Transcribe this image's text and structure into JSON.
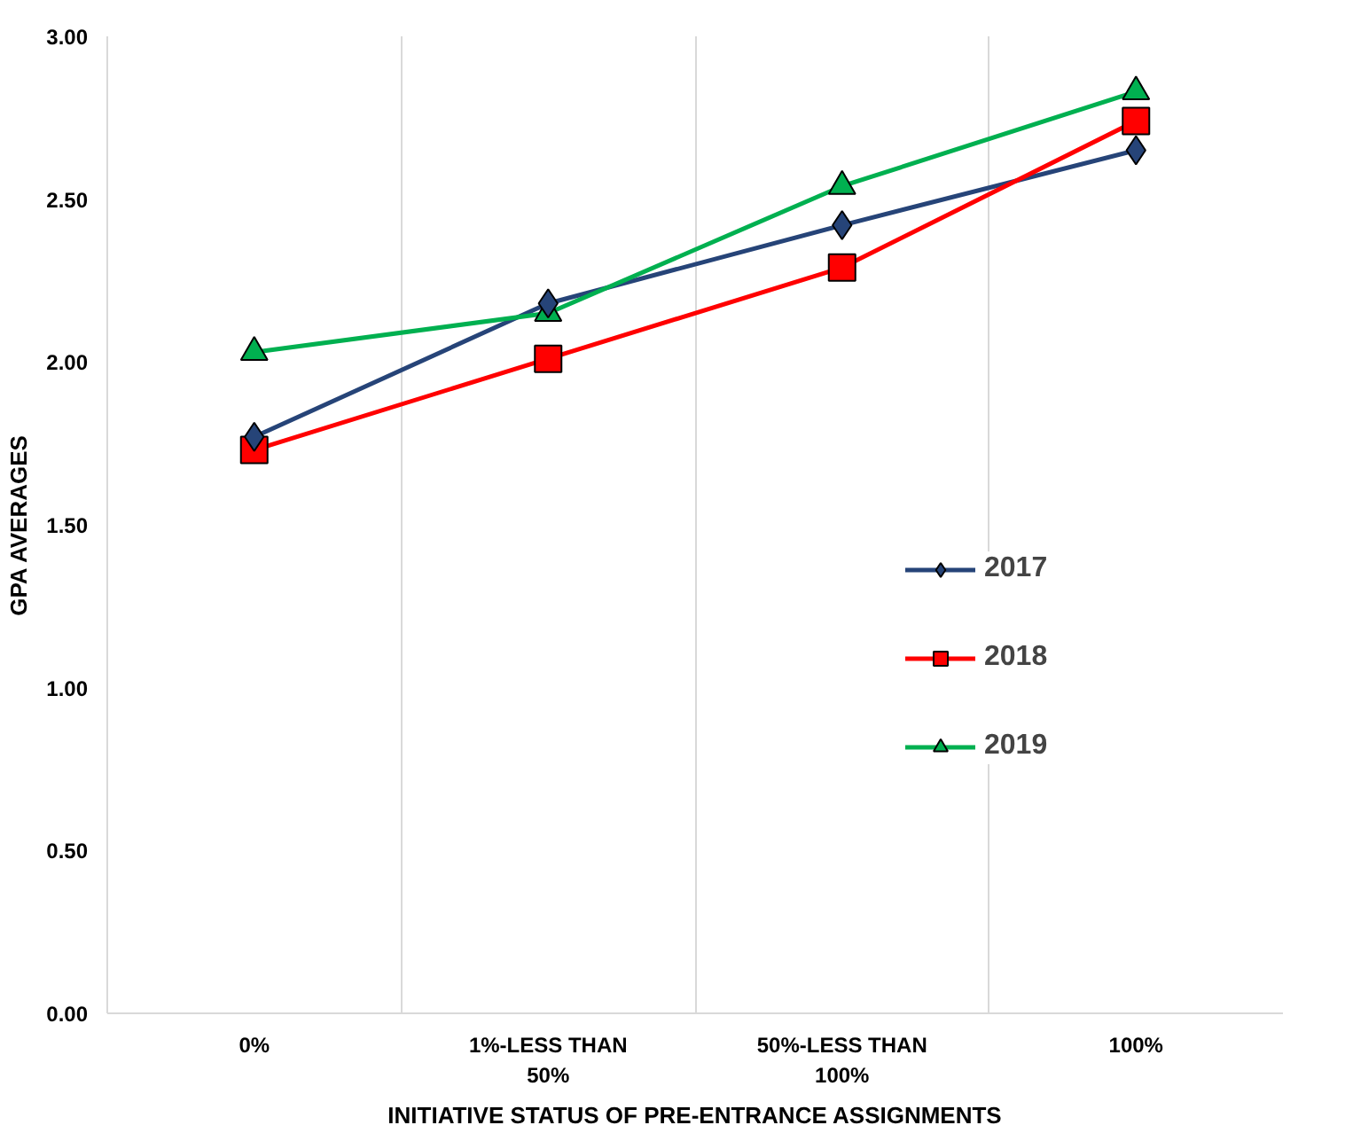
{
  "chart_data": {
    "type": "line",
    "xlabel": "INITIATIVE STATUS OF PRE-ENTRANCE ASSIGNMENTS",
    "ylabel": "GPA AVERAGES",
    "categories": [
      "0%",
      "1%-LESS THAN\n50%",
      "50%-LESS THAN\n100%",
      "100%"
    ],
    "series": [
      {
        "name": "2017",
        "color": "#264478",
        "marker": "diamond",
        "values": [
          1.77,
          2.18,
          2.42,
          2.65
        ]
      },
      {
        "name": "2018",
        "color": "#ff0000",
        "marker": "square",
        "values": [
          1.73,
          2.01,
          2.29,
          2.74
        ]
      },
      {
        "name": "2019",
        "color": "#00b050",
        "marker": "triangle",
        "values": [
          2.03,
          2.15,
          2.54,
          2.83
        ]
      }
    ],
    "ylim": [
      0,
      3
    ],
    "yticks": [
      {
        "value": 0,
        "label": "0.00"
      },
      {
        "value": 0.5,
        "label": "0.50"
      },
      {
        "value": 1,
        "label": "1.00"
      },
      {
        "value": 1.5,
        "label": "1.50"
      },
      {
        "value": 2,
        "label": "2.00"
      },
      {
        "value": 2.5,
        "label": "2.50"
      },
      {
        "value": 3,
        "label": "3.00"
      }
    ],
    "grid": "x",
    "legend": "right",
    "line_style": "solid"
  }
}
